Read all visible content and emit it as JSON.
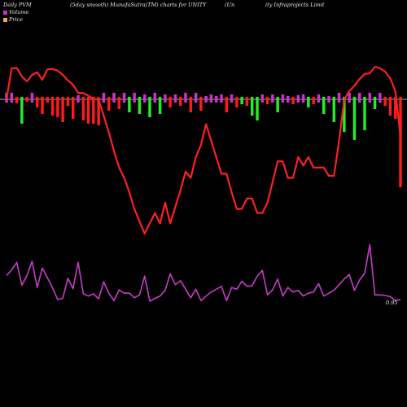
{
  "header": {
    "left": "Daily PVM",
    "middle": "(5day smooth) MunafaSutra(TM) charts for UNITY",
    "right_a": "(Un",
    "right_b": "ity Infraprojects Limit"
  },
  "legend": {
    "items": [
      {
        "label": "Volume",
        "color": "#d02ad0"
      },
      {
        "label": "Price",
        "color": "#f4a460"
      }
    ]
  },
  "end_label": "0.95",
  "colors": {
    "price": "#ff2020",
    "pvm": "#c83cc8",
    "bar_up": "#ff1a1a",
    "bar_down": "#22ee22",
    "bar_neutral": "#cc33cc",
    "baseline": "#dddddd"
  },
  "chart_data": {
    "type": "line",
    "title": "Daily PVM (5day smooth) MunafaSutra(TM) charts for UNITY",
    "x": [
      1,
      2,
      3,
      4,
      5,
      6,
      7,
      8,
      9,
      10,
      11,
      12,
      13,
      14,
      15,
      16,
      17,
      18,
      19,
      20,
      21,
      22,
      23,
      24,
      25,
      26,
      27,
      28,
      29,
      30,
      31,
      32,
      33,
      34,
      35,
      36,
      37,
      38,
      39,
      40,
      41,
      42,
      43,
      44,
      45,
      46,
      47,
      48,
      49,
      50,
      51,
      52,
      53,
      54,
      55,
      56,
      57,
      58,
      59,
      60,
      61,
      62,
      63,
      64,
      65,
      66,
      67,
      68,
      69,
      70,
      71,
      72,
      73,
      74,
      75,
      76,
      77,
      78
    ],
    "series": [
      {
        "name": "Price",
        "values": [
          0.4,
          95,
          96,
          70,
          55,
          75,
          83,
          60,
          92,
          93,
          88,
          75,
          58,
          45,
          20,
          19,
          11,
          0,
          0,
          -8,
          -16,
          -25,
          -33,
          -38,
          -45,
          -53,
          -59,
          -65,
          -60,
          -55,
          -60,
          -50,
          -60,
          -52,
          -44,
          -35,
          -38,
          -28,
          -22,
          -12,
          -20,
          -28,
          -36,
          -36,
          -45,
          -53,
          -53,
          -48,
          -48,
          -55,
          -55,
          -50,
          -40,
          -30,
          -30,
          -38,
          -38,
          -28,
          -32,
          -28,
          -33,
          -33,
          -33,
          -37,
          -37,
          -20,
          0,
          25,
          42,
          62,
          78,
          80,
          100,
          95,
          85,
          65,
          25,
          -18
        ],
        "color": "#ff2020"
      },
      {
        "name": "Volume",
        "values": [
          0,
          0,
          17,
          -25,
          0,
          -20,
          -42,
          10,
          -10,
          -25,
          -42,
          -44,
          -10,
          -28,
          18,
          -36,
          -40,
          -36,
          -45,
          -15,
          -35,
          -48,
          -29,
          -35,
          -35,
          -43,
          -38,
          -5,
          -49,
          -44,
          -40,
          -30,
          -1,
          -20,
          -13,
          -28,
          -43,
          -28,
          -48,
          -40,
          -33,
          -28,
          -23,
          -48,
          -25,
          -28,
          -14,
          -23,
          -22,
          -5,
          5,
          -38,
          -29,
          -10,
          -40,
          -25,
          -33,
          -30,
          -40,
          -35,
          -33,
          -18,
          -40,
          -35,
          -30,
          -20,
          -10,
          -2,
          -30,
          -12,
          0,
          50,
          -40,
          -40,
          -41,
          -43,
          -50,
          -48
        ],
        "color": "#c83cc8"
      },
      {
        "name": "PVM",
        "values": [
          -5,
          5,
          18,
          -22,
          -5,
          20,
          -26,
          8,
          -9,
          -27,
          -47,
          -45,
          -10,
          -28,
          18,
          -37,
          -41,
          -37,
          -46,
          -16,
          -36,
          -49,
          -30,
          -36,
          -36,
          -44,
          -39,
          -6,
          -50,
          -45,
          -41,
          -31,
          -2,
          -21,
          -14,
          -29,
          -44,
          -29,
          -49,
          -41,
          -34,
          -29,
          -24,
          -49,
          -26,
          -29,
          -15,
          -24,
          -23,
          -6,
          4,
          -39,
          -30,
          -11,
          -41,
          -26,
          -34,
          -31,
          -41,
          -36,
          -34,
          -19,
          -41,
          -36,
          -31,
          -21,
          -11,
          -3,
          -31,
          -13,
          -1,
          49,
          -39,
          -39,
          -40,
          -42,
          -49,
          -47
        ]
      }
    ],
    "bars": [
      {
        "dir": "neutral",
        "h": 8
      },
      {
        "dir": "neutral",
        "h": 10
      },
      {
        "dir": "up",
        "h": 5
      },
      {
        "dir": "down",
        "h": 30
      },
      {
        "dir": "up",
        "h": 3
      },
      {
        "dir": "neutral",
        "h": 12
      },
      {
        "dir": "up",
        "h": 10
      },
      {
        "dir": "up",
        "h": 18
      },
      {
        "dir": "up",
        "h": 4
      },
      {
        "dir": "up",
        "h": 20
      },
      {
        "dir": "up",
        "h": 22
      },
      {
        "dir": "up",
        "h": 28
      },
      {
        "dir": "up",
        "h": 8
      },
      {
        "dir": "up",
        "h": 24
      },
      {
        "dir": "neutral",
        "h": 5
      },
      {
        "dir": "up",
        "h": 26
      },
      {
        "dir": "up",
        "h": 30
      },
      {
        "dir": "up",
        "h": 30
      },
      {
        "dir": "up",
        "h": 32
      },
      {
        "dir": "neutral",
        "h": 8
      },
      {
        "dir": "up",
        "h": 14
      },
      {
        "dir": "neutral",
        "h": 14
      },
      {
        "dir": "up",
        "h": 12
      },
      {
        "dir": "neutral",
        "h": 10
      },
      {
        "dir": "down",
        "h": 16
      },
      {
        "dir": "neutral",
        "h": 12
      },
      {
        "dir": "down",
        "h": 18
      },
      {
        "dir": "neutral",
        "h": 6
      },
      {
        "dir": "down",
        "h": 22
      },
      {
        "dir": "neutral",
        "h": 14
      },
      {
        "dir": "down",
        "h": 18
      },
      {
        "dir": "neutral",
        "h": 6
      },
      {
        "dir": "up",
        "h": 10
      },
      {
        "dir": "neutral",
        "h": 6
      },
      {
        "dir": "up",
        "h": 8
      },
      {
        "dir": "neutral",
        "h": 10
      },
      {
        "dir": "up",
        "h": 16
      },
      {
        "dir": "neutral",
        "h": 8
      },
      {
        "dir": "up",
        "h": 14
      },
      {
        "dir": "neutral",
        "h": 4
      },
      {
        "dir": "neutral",
        "h": 6
      },
      {
        "dir": "neutral",
        "h": 4
      },
      {
        "dir": "neutral",
        "h": 6
      },
      {
        "dir": "up",
        "h": 16
      },
      {
        "dir": "neutral",
        "h": 6
      },
      {
        "dir": "up",
        "h": 10
      },
      {
        "dir": "down",
        "h": 6
      },
      {
        "dir": "up",
        "h": 8
      },
      {
        "dir": "down",
        "h": 20
      },
      {
        "dir": "down",
        "h": 26
      },
      {
        "dir": "neutral",
        "h": 6
      },
      {
        "dir": "up",
        "h": 6
      },
      {
        "dir": "neutral",
        "h": 6
      },
      {
        "dir": "down",
        "h": 16
      },
      {
        "dir": "neutral",
        "h": 6
      },
      {
        "dir": "neutral",
        "h": 4
      },
      {
        "dir": "up",
        "h": 6
      },
      {
        "dir": "neutral",
        "h": 5
      },
      {
        "dir": "neutral",
        "h": 6
      },
      {
        "dir": "down",
        "h": 10
      },
      {
        "dir": "up",
        "h": 6
      },
      {
        "dir": "neutral",
        "h": 6
      },
      {
        "dir": "down",
        "h": 18
      },
      {
        "dir": "neutral",
        "h": 4
      },
      {
        "dir": "down",
        "h": 28
      },
      {
        "dir": "neutral",
        "h": 8
      },
      {
        "dir": "down",
        "h": 40
      },
      {
        "dir": "neutral",
        "h": 10
      },
      {
        "dir": "down",
        "h": 50
      },
      {
        "dir": "neutral",
        "h": 12
      },
      {
        "dir": "down",
        "h": 38
      },
      {
        "dir": "neutral",
        "h": 14
      },
      {
        "dir": "down",
        "h": 12
      },
      {
        "dir": "neutral",
        "h": 10
      },
      {
        "dir": "up",
        "h": 8
      },
      {
        "dir": "up",
        "h": 20
      },
      {
        "dir": "up",
        "h": 24
      },
      {
        "dir": "up",
        "h": 108
      }
    ],
    "ylim": [
      -100,
      100
    ],
    "grid": false,
    "legend_position": "top-left"
  }
}
